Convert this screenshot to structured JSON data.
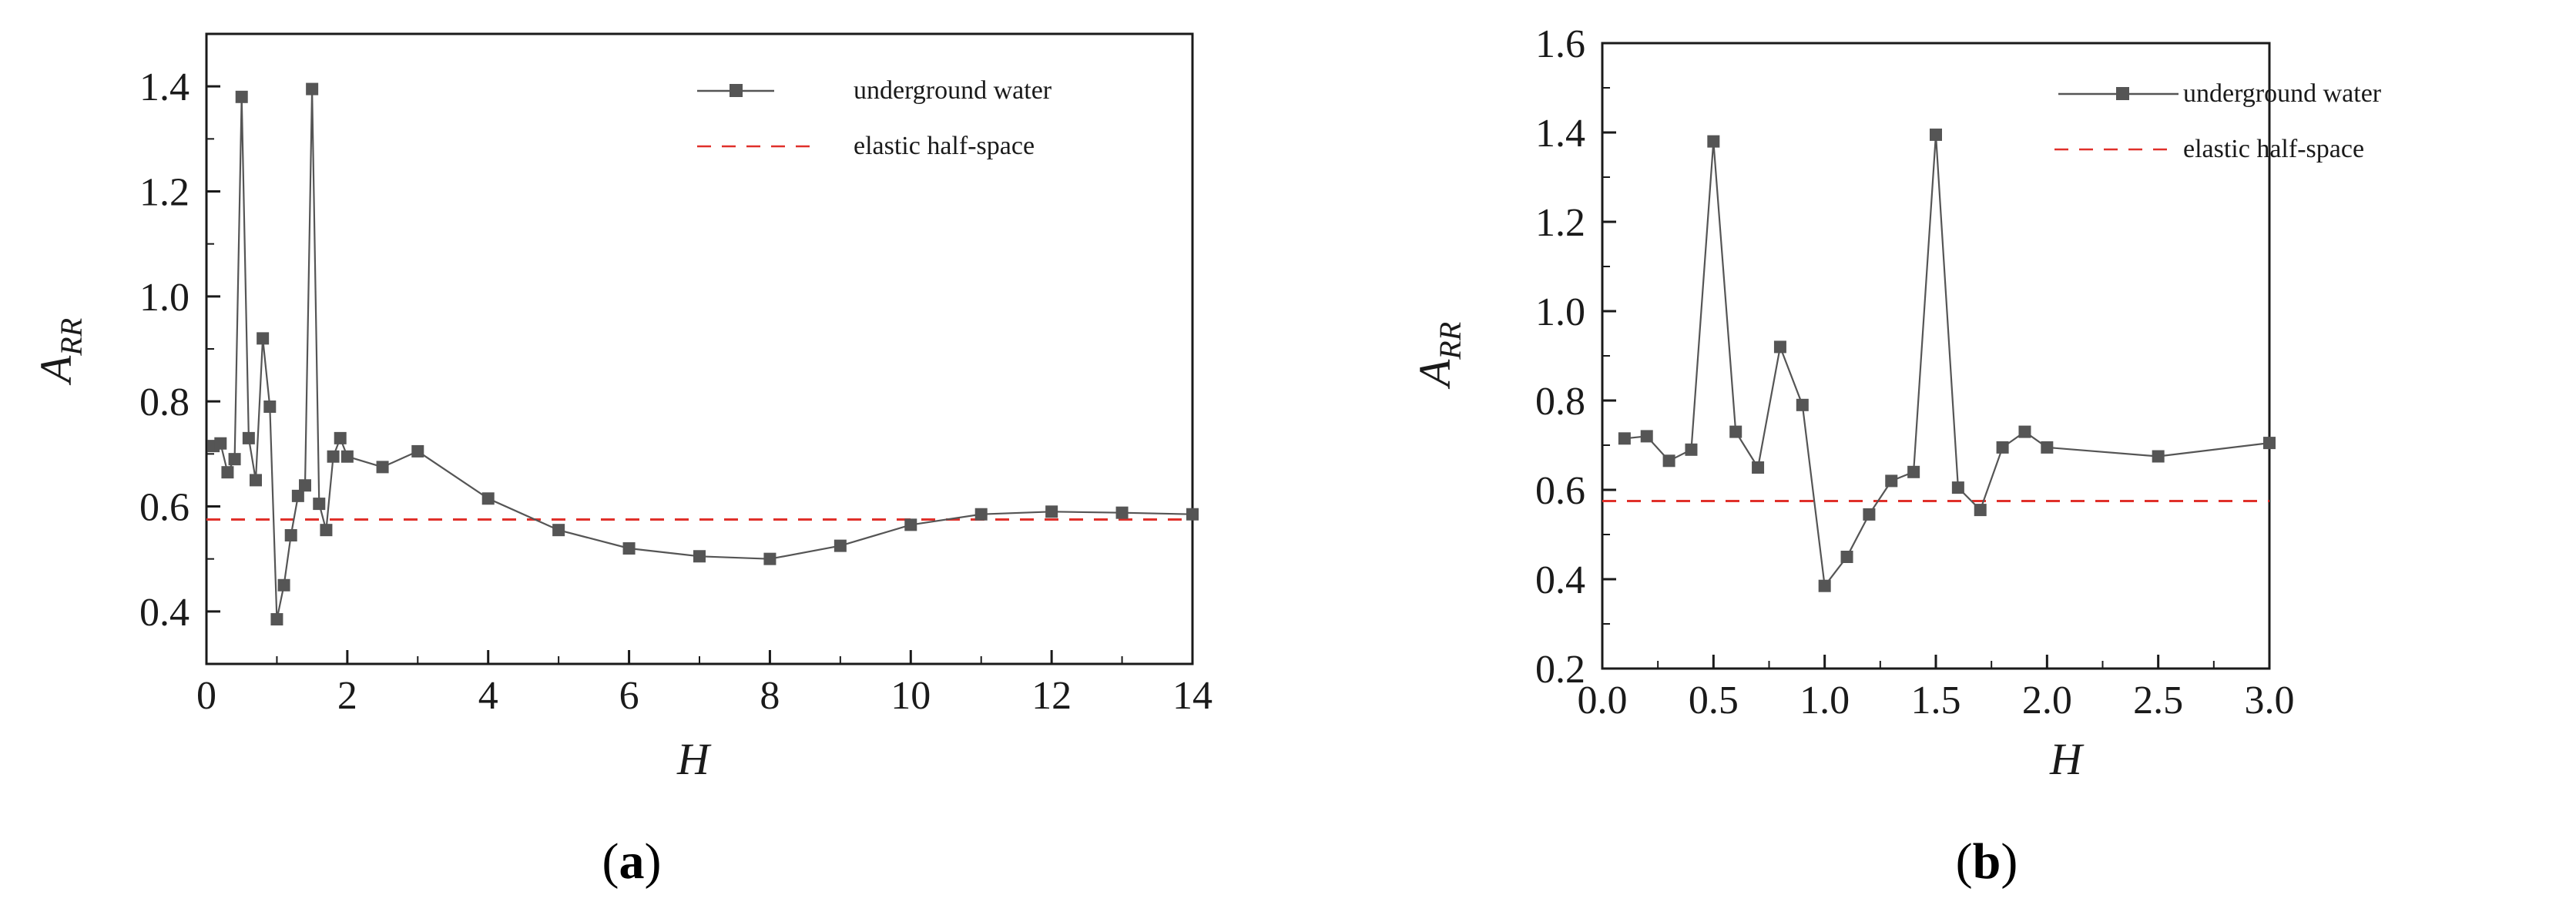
{
  "colors": {
    "series": "#555555",
    "reference": "#e0302a",
    "axis": "#1a1a1a"
  },
  "chart_data": [
    {
      "type": "line",
      "panel_label": "a",
      "xlabel": "H",
      "ylabel_main": "A",
      "ylabel_sub": "RR",
      "xlim": [
        0,
        14
      ],
      "ylim": [
        0.3,
        1.5
      ],
      "x_ticks": [
        0,
        2,
        4,
        6,
        8,
        10,
        12,
        14
      ],
      "x_tick_labels": [
        "0",
        "2",
        "4",
        "6",
        "8",
        "10",
        "12",
        "14"
      ],
      "y_ticks": [
        0.4,
        0.6,
        0.8,
        1.0,
        1.2,
        1.4
      ],
      "y_tick_labels": [
        "0.4",
        "0.6",
        "0.8",
        "1.0",
        "1.2",
        "1.4"
      ],
      "legend_position": "top-right",
      "series": [
        {
          "name": "underground water",
          "style": "line-square-markers",
          "x": [
            0.1,
            0.2,
            0.3,
            0.4,
            0.5,
            0.6,
            0.7,
            0.8,
            0.9,
            1.0,
            1.1,
            1.2,
            1.3,
            1.4,
            1.5,
            1.6,
            1.7,
            1.8,
            1.9,
            2.0,
            2.5,
            3,
            4,
            5,
            6,
            7,
            8,
            9,
            10,
            11,
            12,
            13,
            14
          ],
          "y": [
            0.715,
            0.72,
            0.665,
            0.69,
            1.38,
            0.73,
            0.65,
            0.92,
            0.79,
            0.385,
            0.45,
            0.545,
            0.62,
            0.64,
            1.395,
            0.605,
            0.555,
            0.695,
            0.73,
            0.695,
            0.675,
            0.705,
            0.615,
            0.555,
            0.52,
            0.505,
            0.5,
            0.525,
            0.565,
            0.585,
            0.59,
            0.588,
            0.585
          ]
        },
        {
          "name": "elastic half-space",
          "style": "dashed",
          "x": [
            0,
            14
          ],
          "y": [
            0.575,
            0.575
          ]
        }
      ]
    },
    {
      "type": "line",
      "panel_label": "b",
      "xlabel": "H",
      "ylabel_main": "A",
      "ylabel_sub": "RR",
      "xlim": [
        0,
        3.0
      ],
      "ylim": [
        0.2,
        1.6
      ],
      "x_ticks": [
        0,
        0.5,
        1.0,
        1.5,
        2.0,
        2.5,
        3.0
      ],
      "x_tick_labels": [
        "0.0",
        "0.5",
        "1.0",
        "1.5",
        "2.0",
        "2.5",
        "3.0"
      ],
      "y_ticks": [
        0.2,
        0.4,
        0.6,
        0.8,
        1.0,
        1.2,
        1.4,
        1.6
      ],
      "y_tick_labels": [
        "0.2",
        "0.4",
        "0.6",
        "0.8",
        "1.0",
        "1.2",
        "1.4",
        "1.6"
      ],
      "legend_position": "top-right",
      "series": [
        {
          "name": "underground water",
          "style": "line-square-markers",
          "x": [
            0.1,
            0.2,
            0.3,
            0.4,
            0.5,
            0.6,
            0.7,
            0.8,
            0.9,
            1.0,
            1.1,
            1.2,
            1.3,
            1.4,
            1.5,
            1.6,
            1.7,
            1.8,
            1.9,
            2.0,
            2.5,
            3.0
          ],
          "y": [
            0.715,
            0.72,
            0.665,
            0.69,
            1.38,
            0.73,
            0.65,
            0.92,
            0.79,
            0.385,
            0.45,
            0.545,
            0.62,
            0.64,
            1.395,
            0.605,
            0.555,
            0.695,
            0.73,
            0.695,
            0.675,
            0.705
          ]
        },
        {
          "name": "elastic half-space",
          "style": "dashed",
          "x": [
            0,
            3.0
          ],
          "y": [
            0.575,
            0.575
          ]
        }
      ]
    }
  ]
}
